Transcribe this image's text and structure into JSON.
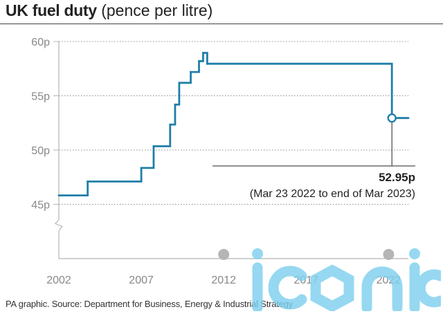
{
  "title": "UK fuel duty",
  "subtitle": "(pence per litre)",
  "source": "PA graphic. Source: Department for Business, Energy & Industrial Strategy",
  "watermark": "iconic",
  "colors": {
    "line": "#1f7ea8",
    "grid": "#8c8c8c",
    "axis": "#b5b5b5",
    "tick_text": "#888888",
    "watermark": "#7fd0ee",
    "dot": "#b5b5b5"
  },
  "chart_data": {
    "type": "line",
    "title": "UK fuel duty (pence per litre)",
    "xlabel": "",
    "ylabel": "",
    "xlim": [
      2002,
      2023.2
    ],
    "ylim": [
      40,
      60
    ],
    "y_break": true,
    "grid": true,
    "xticks": [
      {
        "value": 2002,
        "label": "2002"
      },
      {
        "value": 2007,
        "label": "2007"
      },
      {
        "value": 2012,
        "label": "2012"
      },
      {
        "value": 2017,
        "label": "2017"
      },
      {
        "value": 2022,
        "label": "2022"
      }
    ],
    "yticks": [
      {
        "value": 45,
        "label": "45p"
      },
      {
        "value": 50,
        "label": "50p"
      },
      {
        "value": 55,
        "label": "55p"
      },
      {
        "value": 60,
        "label": "60p"
      }
    ],
    "series": [
      {
        "name": "Fuel duty",
        "step": true,
        "points": [
          {
            "x": 2002.0,
            "y": 45.82
          },
          {
            "x": 2003.75,
            "y": 47.1
          },
          {
            "x": 2007.0,
            "y": 48.35
          },
          {
            "x": 2007.75,
            "y": 50.35
          },
          {
            "x": 2008.75,
            "y": 52.35
          },
          {
            "x": 2009.05,
            "y": 54.19
          },
          {
            "x": 2009.3,
            "y": 56.19
          },
          {
            "x": 2010.0,
            "y": 57.19
          },
          {
            "x": 2010.5,
            "y": 58.19
          },
          {
            "x": 2010.75,
            "y": 58.95
          },
          {
            "x": 2011.0,
            "y": 57.95
          },
          {
            "x": 2022.2,
            "y": 52.95
          },
          {
            "x": 2023.2,
            "y": 52.95
          }
        ]
      }
    ],
    "annotation": {
      "x": 2022.2,
      "y": 52.95,
      "value_label": "52.95p",
      "period_label": "(Mar 23 2022 to end of Mar 2023)"
    }
  }
}
